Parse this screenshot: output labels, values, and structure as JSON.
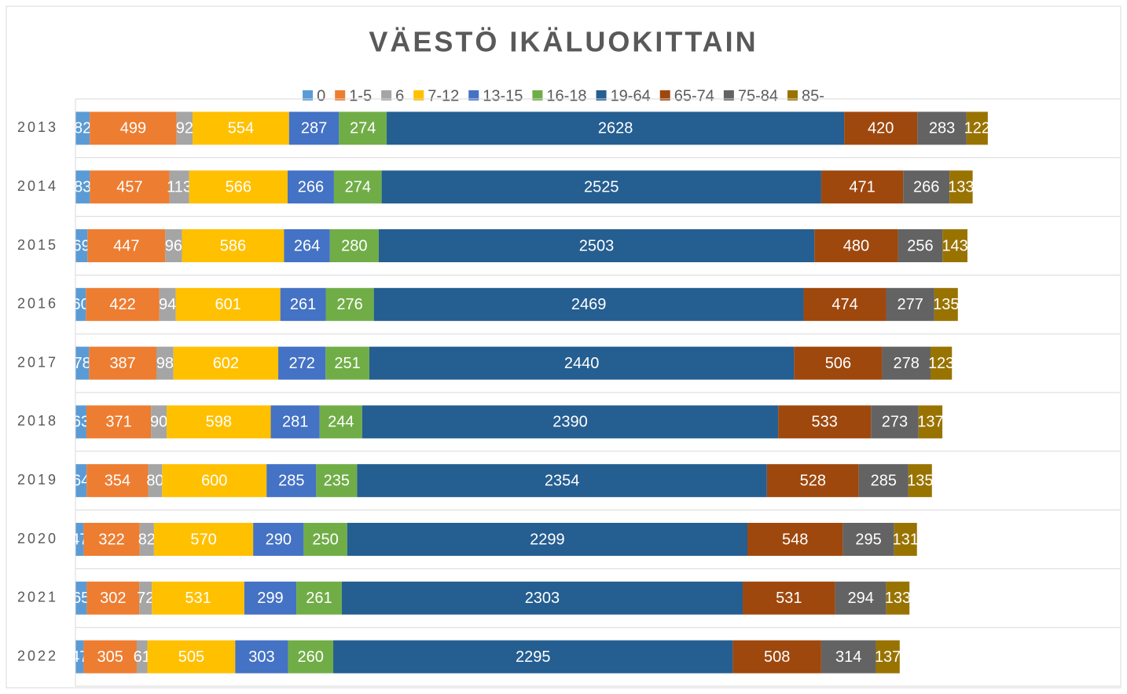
{
  "chart_data": {
    "type": "bar",
    "orientation": "horizontal",
    "stacked": true,
    "title": "VÄESTÖ IKÄLUOKITTAIN",
    "categories": [
      "2013",
      "2014",
      "2015",
      "2016",
      "2017",
      "2018",
      "2019",
      "2020",
      "2021",
      "2022"
    ],
    "xlim": [
      0,
      6000
    ],
    "legend": "top",
    "series": [
      {
        "name": "0",
        "color": "#5b9bd5",
        "values": [
          82,
          83,
          69,
          60,
          78,
          63,
          64,
          47,
          65,
          47
        ]
      },
      {
        "name": "1-5",
        "color": "#ed7d31",
        "values": [
          499,
          457,
          447,
          422,
          387,
          371,
          354,
          322,
          302,
          305
        ]
      },
      {
        "name": "6",
        "color": "#a5a5a5",
        "values": [
          92,
          113,
          96,
          94,
          98,
          90,
          80,
          82,
          72,
          61
        ]
      },
      {
        "name": "7-12",
        "color": "#ffc000",
        "values": [
          554,
          566,
          586,
          601,
          602,
          598,
          600,
          570,
          531,
          505
        ]
      },
      {
        "name": "13-15",
        "color": "#4472c4",
        "values": [
          287,
          266,
          264,
          261,
          272,
          281,
          285,
          290,
          299,
          303
        ]
      },
      {
        "name": "16-18",
        "color": "#70ad47",
        "values": [
          274,
          274,
          280,
          276,
          251,
          244,
          235,
          250,
          261,
          260
        ]
      },
      {
        "name": "19-64",
        "color": "#255e91",
        "values": [
          2628,
          2525,
          2503,
          2469,
          2440,
          2390,
          2354,
          2299,
          2303,
          2295
        ]
      },
      {
        "name": "65-74",
        "color": "#9e480e",
        "values": [
          420,
          471,
          480,
          474,
          506,
          533,
          528,
          548,
          531,
          508
        ]
      },
      {
        "name": "75-84",
        "color": "#636363",
        "values": [
          283,
          266,
          256,
          277,
          278,
          273,
          285,
          295,
          294,
          314
        ]
      },
      {
        "name": "85-",
        "color": "#997300",
        "values": [
          122,
          133,
          143,
          135,
          123,
          137,
          135,
          131,
          133,
          137
        ]
      }
    ]
  }
}
